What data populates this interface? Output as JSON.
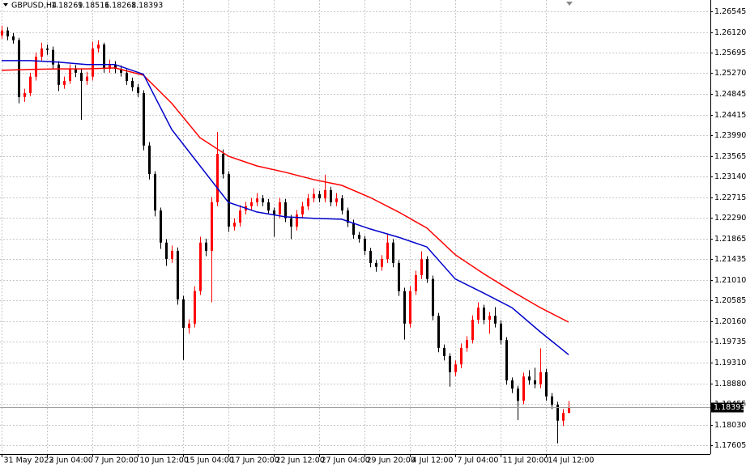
{
  "chart_data": {
    "type": "candlestick",
    "title": "GBPUSD,H4",
    "up_color": "#ff0000",
    "down_color": "#000000",
    "grid": true,
    "ylim": [
      1.17422,
      1.26779
    ],
    "yticks": [
      1.26545,
      {
        "value": 1.2612,
        "label": "1.26120"
      },
      1.25695,
      {
        "value": 1.2527,
        "label": "1.25270"
      },
      1.24845,
      1.24415,
      {
        "value": 1.2399,
        "label": "1.23990"
      },
      1.23565,
      {
        "value": 1.2314,
        "label": "1.23140"
      },
      1.22715,
      {
        "value": 1.2229,
        "label": "1.22290"
      },
      1.21865,
      1.21435,
      {
        "value": 1.2101,
        "label": "1.21010"
      },
      1.20585,
      {
        "value": 1.2016,
        "label": "1.20160"
      },
      1.19735,
      {
        "value": 1.1931,
        "label": "1.19310"
      },
      {
        "value": 1.1888,
        "label": "1.18880"
      },
      1.18455,
      {
        "value": 1.1803,
        "label": "1.18030"
      },
      1.17605
    ],
    "categories": [
      "31 May 2022",
      null,
      null,
      null,
      null,
      null,
      null,
      null,
      "3 Jun 04:00",
      null,
      null,
      null,
      null,
      null,
      null,
      null,
      "7 Jun 20:00",
      null,
      null,
      null,
      null,
      null,
      null,
      null,
      "10 Jun 12:00",
      null,
      null,
      null,
      null,
      null,
      null,
      null,
      "15 Jun 04:00",
      null,
      null,
      null,
      null,
      null,
      null,
      null,
      "17 Jun 20:00",
      null,
      null,
      null,
      null,
      null,
      null,
      null,
      "22 Jun 12:00",
      null,
      null,
      null,
      null,
      null,
      null,
      null,
      "27 Jun 04:00",
      null,
      null,
      null,
      null,
      null,
      null,
      null,
      "29 Jun 20:00",
      null,
      null,
      null,
      null,
      null,
      null,
      null,
      "4 Jul 12:00",
      null,
      null,
      null,
      null,
      null,
      null,
      null,
      "7 Jul 04:00",
      null,
      null,
      null,
      null,
      null,
      null,
      null,
      "11 Jul 20:00",
      null,
      null,
      null,
      null,
      null,
      null,
      null,
      "14 Jul 12:00",
      null,
      null,
      null,
      null
    ],
    "ohlc": [
      [
        1.2605,
        1.2625,
        1.2598,
        1.2615
      ],
      [
        1.2615,
        1.2622,
        1.2595,
        1.2603
      ],
      [
        1.2603,
        1.261,
        1.2588,
        1.2595
      ],
      [
        1.2595,
        1.26,
        1.2465,
        1.2478
      ],
      [
        1.2478,
        1.2495,
        1.2468,
        1.2486
      ],
      [
        1.2486,
        1.2528,
        1.248,
        1.252
      ],
      [
        1.252,
        1.257,
        1.2512,
        1.2561
      ],
      [
        1.2561,
        1.259,
        1.2553,
        1.2578
      ],
      [
        1.2578,
        1.2586,
        1.2565,
        1.2575
      ],
      [
        1.2575,
        1.2582,
        1.2536,
        1.2545
      ],
      [
        1.2545,
        1.2552,
        1.249,
        1.2503
      ],
      [
        1.2503,
        1.252,
        1.2495,
        1.2511
      ],
      [
        1.2511,
        1.2545,
        1.2505,
        1.2536
      ],
      [
        1.2536,
        1.2544,
        1.2519,
        1.2528
      ],
      [
        1.2528,
        1.2535,
        1.2431,
        1.2511
      ],
      [
        1.2511,
        1.253,
        1.2503,
        1.252
      ],
      [
        1.252,
        1.2592,
        1.2512,
        1.2578
      ],
      [
        1.2578,
        1.2595,
        1.257,
        1.2586
      ],
      [
        1.2586,
        1.259,
        1.2528,
        1.2536
      ],
      [
        1.2536,
        1.2555,
        1.2528,
        1.2545
      ],
      [
        1.2545,
        1.2552,
        1.2527,
        1.2536
      ],
      [
        1.2536,
        1.2543,
        1.252,
        1.2528
      ],
      [
        1.2528,
        1.2535,
        1.2503,
        1.2511
      ],
      [
        1.2511,
        1.2518,
        1.249,
        1.2498
      ],
      [
        1.2498,
        1.2505,
        1.2478,
        1.2486
      ],
      [
        1.2486,
        1.2492,
        1.2368,
        1.2378
      ],
      [
        1.2378,
        1.2385,
        1.2308,
        1.2319
      ],
      [
        1.2319,
        1.2325,
        1.2232,
        1.2244
      ],
      [
        1.2244,
        1.225,
        1.2165,
        1.2178
      ],
      [
        1.2178,
        1.2185,
        1.213,
        1.2144
      ],
      [
        1.2144,
        1.2172,
        1.2136,
        1.2161
      ],
      [
        1.2161,
        1.2168,
        1.205,
        1.2061
      ],
      [
        1.2061,
        1.2068,
        1.1936,
        1.2002
      ],
      [
        1.2002,
        1.202,
        1.199,
        1.2011
      ],
      [
        1.2011,
        1.2088,
        1.2003,
        1.2078
      ],
      [
        1.2078,
        1.219,
        1.207,
        1.2178
      ],
      [
        1.2178,
        1.2186,
        1.215,
        1.2161
      ],
      [
        1.2161,
        1.2272,
        1.2055,
        1.2261
      ],
      [
        1.2261,
        1.2406,
        1.2253,
        1.2361
      ],
      [
        1.2361,
        1.237,
        1.231,
        1.2319
      ],
      [
        1.2319,
        1.2325,
        1.22,
        1.2211
      ],
      [
        1.2211,
        1.2228,
        1.2203,
        1.2219
      ],
      [
        1.2219,
        1.2255,
        1.2211,
        1.2244
      ],
      [
        1.2244,
        1.2262,
        1.2236,
        1.2253
      ],
      [
        1.2253,
        1.227,
        1.2245,
        1.2261
      ],
      [
        1.2261,
        1.228,
        1.2253,
        1.2269
      ],
      [
        1.2269,
        1.2276,
        1.2253,
        1.2261
      ],
      [
        1.2261,
        1.2268,
        1.2236,
        1.2244
      ],
      [
        1.2244,
        1.225,
        1.219,
        1.2236
      ],
      [
        1.2236,
        1.227,
        1.2228,
        1.2261
      ],
      [
        1.2261,
        1.2268,
        1.222,
        1.2228
      ],
      [
        1.2228,
        1.2235,
        1.2185,
        1.2211
      ],
      [
        1.2211,
        1.2245,
        1.2203,
        1.2236
      ],
      [
        1.2236,
        1.2262,
        1.2228,
        1.2253
      ],
      [
        1.2253,
        1.2278,
        1.2245,
        1.2269
      ],
      [
        1.2269,
        1.229,
        1.2261,
        1.2278
      ],
      [
        1.2278,
        1.2285,
        1.2261,
        1.2269
      ],
      [
        1.2269,
        1.2318,
        1.2261,
        1.2286
      ],
      [
        1.2286,
        1.2293,
        1.2253,
        1.2261
      ],
      [
        1.2261,
        1.228,
        1.2253,
        1.2269
      ],
      [
        1.2269,
        1.2276,
        1.2236,
        1.2244
      ],
      [
        1.2244,
        1.225,
        1.221,
        1.2219
      ],
      [
        1.2219,
        1.2225,
        1.2186,
        1.2194
      ],
      [
        1.2194,
        1.22,
        1.2178,
        1.2186
      ],
      [
        1.2186,
        1.2192,
        1.2152,
        1.2161
      ],
      [
        1.2161,
        1.2167,
        1.2127,
        1.2136
      ],
      [
        1.2136,
        1.2142,
        1.2118,
        1.2128
      ],
      [
        1.2128,
        1.2152,
        1.212,
        1.2144
      ],
      [
        1.2144,
        1.2195,
        1.2136,
        1.2178
      ],
      [
        1.2178,
        1.2185,
        1.2127,
        1.2136
      ],
      [
        1.2136,
        1.2142,
        1.2068,
        1.2078
      ],
      [
        1.2078,
        1.2085,
        1.1978,
        1.2011
      ],
      [
        1.2011,
        1.2088,
        1.2003,
        1.2078
      ],
      [
        1.2078,
        1.212,
        1.207,
        1.2111
      ],
      [
        1.2111,
        1.216,
        1.2103,
        1.2144
      ],
      [
        1.2144,
        1.215,
        1.2095,
        1.2103
      ],
      [
        1.2103,
        1.211,
        1.2018,
        1.2027
      ],
      [
        1.2027,
        1.2033,
        1.1952,
        1.1961
      ],
      [
        1.1961,
        1.1968,
        1.1935,
        1.1944
      ],
      [
        1.1944,
        1.195,
        1.1881,
        1.1911
      ],
      [
        1.1911,
        1.1935,
        1.1903,
        1.1927
      ],
      [
        1.1927,
        1.197,
        1.1919,
        1.1961
      ],
      [
        1.1961,
        1.1985,
        1.1953,
        1.1977
      ],
      [
        1.1977,
        1.2028,
        1.197,
        1.2019
      ],
      [
        1.2019,
        1.2055,
        1.2011,
        1.2044
      ],
      [
        1.2044,
        1.205,
        1.201,
        1.2019
      ],
      [
        1.2019,
        1.2035,
        1.199,
        1.2027
      ],
      [
        1.2027,
        1.2045,
        1.2003,
        1.2011
      ],
      [
        1.2011,
        1.2018,
        1.1968,
        1.1977
      ],
      [
        1.1977,
        1.1983,
        1.1885,
        1.1894
      ],
      [
        1.1894,
        1.19,
        1.1868,
        1.1877
      ],
      [
        1.1877,
        1.1883,
        1.1812,
        1.1852
      ],
      [
        1.1852,
        1.191,
        1.1845,
        1.1902
      ],
      [
        1.1902,
        1.1915,
        1.1885,
        1.1894
      ],
      [
        1.1894,
        1.192,
        1.1878,
        1.1886
      ],
      [
        1.1886,
        1.196,
        1.1878,
        1.1911
      ],
      [
        1.1911,
        1.1918,
        1.1852,
        1.1861
      ],
      [
        1.1861,
        1.1868,
        1.1835,
        1.1844
      ],
      [
        1.1844,
        1.185,
        1.1764,
        1.1811
      ],
      [
        1.1811,
        1.1835,
        1.18,
        1.1827
      ],
      [
        1.18269,
        1.18516,
        1.18268,
        1.18393
      ]
    ],
    "current_price": 1.18393,
    "series": [
      {
        "color": "#ff0000",
        "x": [
          0,
          5,
          10,
          15,
          20,
          25,
          30,
          35,
          40,
          45,
          50,
          55,
          60,
          65,
          70,
          75,
          80,
          85,
          90,
          95,
          100
        ],
        "values": [
          1.2533,
          1.2535,
          1.2536,
          1.2536,
          1.2538,
          1.2523,
          1.2465,
          1.2394,
          1.2356,
          1.2336,
          1.2323,
          1.2308,
          1.2296,
          1.2271,
          1.2241,
          1.2208,
          1.2153,
          1.2114,
          1.2078,
          1.2044,
          1.2014
        ]
      },
      {
        "color": "#0000cc",
        "x": [
          0,
          5,
          10,
          15,
          20,
          25,
          30,
          35,
          40,
          45,
          50,
          55,
          60,
          65,
          70,
          75,
          80,
          85,
          90,
          95,
          100
        ],
        "values": [
          1.2553,
          1.2553,
          1.255,
          1.2545,
          1.2545,
          1.2525,
          1.2411,
          1.2336,
          1.2261,
          1.2241,
          1.2231,
          1.2228,
          1.2226,
          1.2206,
          1.2189,
          1.2169,
          1.2103,
          1.2074,
          1.2044,
          1.1994,
          1.1947
        ]
      }
    ]
  }
}
